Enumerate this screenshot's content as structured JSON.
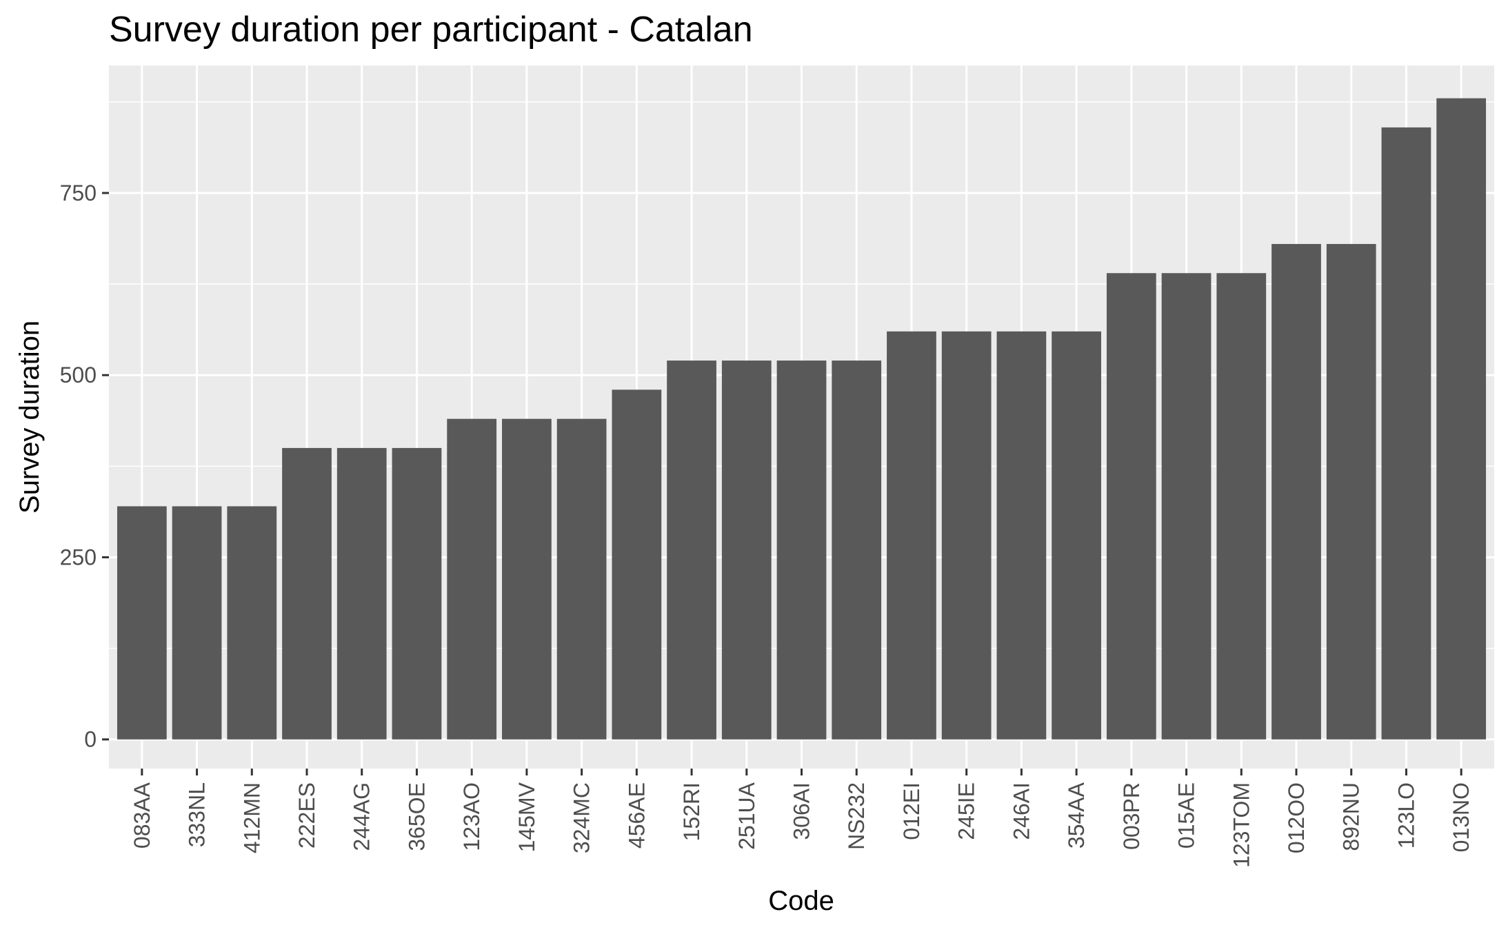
{
  "chart_data": {
    "type": "bar",
    "title": "Survey duration per participant - Catalan",
    "xlabel": "Code",
    "ylabel": "Survey duration",
    "categories": [
      "083AA",
      "333NL",
      "412MN",
      "222ES",
      "244AG",
      "365OE",
      "123AO",
      "145MV",
      "324MC",
      "456AE",
      "152RI",
      "251UA",
      "306AI",
      "NS232",
      "012EI",
      "245IE",
      "246AI",
      "354AA",
      "003PR",
      "015AE",
      "123TOM",
      "012OO",
      "892NU",
      "123LO",
      "013NO"
    ],
    "values": [
      320,
      320,
      320,
      400,
      400,
      400,
      440,
      440,
      440,
      480,
      520,
      520,
      520,
      520,
      560,
      560,
      560,
      560,
      640,
      640,
      640,
      680,
      680,
      840,
      880
    ],
    "ylim": [
      -40,
      925
    ],
    "yticks": [
      0,
      250,
      500,
      750
    ],
    "ytick_labels": [
      "0",
      "250",
      "500",
      "750"
    ],
    "grid": true,
    "legend": "none",
    "colors": {
      "bar": "#595959",
      "panel": "#ebebeb",
      "grid_major": "#ffffff",
      "tick": "#333333"
    }
  }
}
